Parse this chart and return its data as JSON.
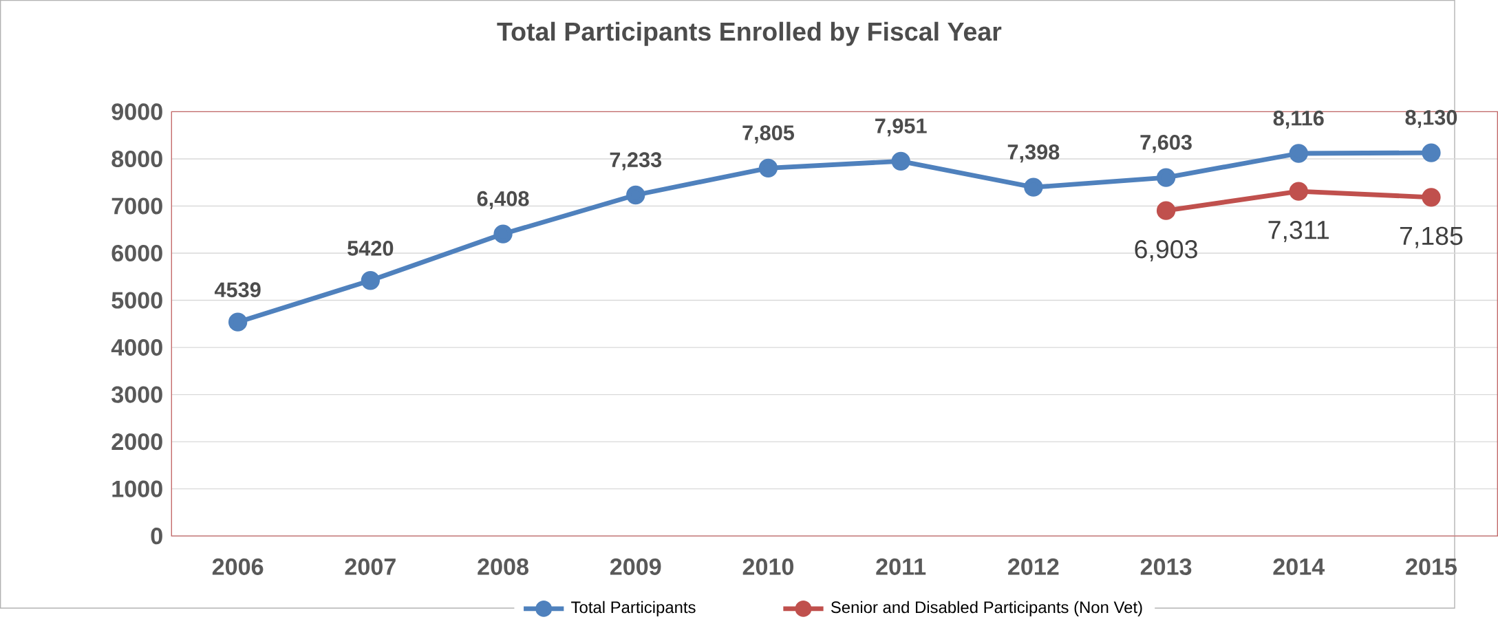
{
  "chart_data": {
    "type": "line",
    "title": "Total Participants Enrolled by Fiscal Year",
    "categories": [
      "2006",
      "2007",
      "2008",
      "2009",
      "2010",
      "2011",
      "2012",
      "2013",
      "2014",
      "2015"
    ],
    "series": [
      {
        "name": "Total Participants",
        "color": "#4f81bd",
        "values": [
          4539,
          5420,
          6408,
          7233,
          7805,
          7951,
          7398,
          7603,
          8116,
          8130
        ],
        "value_labels": [
          "4539",
          "5420",
          "6,408",
          "7,233",
          "7,805",
          "7,951",
          "7,398",
          "7,603",
          "8,116",
          "8,130"
        ]
      },
      {
        "name": "Senior and Disabled Participants (Non Vet)",
        "color": "#c0504d",
        "values": [
          null,
          null,
          null,
          null,
          null,
          null,
          null,
          6903,
          7311,
          7185
        ],
        "value_labels": [
          null,
          null,
          null,
          null,
          null,
          null,
          null,
          "6,903",
          "7,311",
          "7,185"
        ]
      }
    ],
    "ylim": [
      0,
      9000
    ],
    "yticks": [
      0,
      1000,
      2000,
      3000,
      4000,
      5000,
      6000,
      7000,
      8000,
      9000
    ],
    "grid": "y",
    "legend": "bottom",
    "marker": "circle",
    "line_style": "solid"
  }
}
